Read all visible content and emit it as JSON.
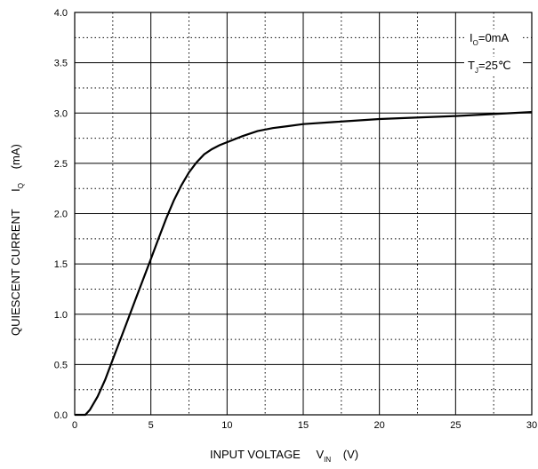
{
  "chart_data": {
    "type": "line",
    "title": "",
    "xlabel": {
      "main": "INPUT VOLTAGE",
      "symbol": "V",
      "symbol_sub": "IN",
      "unit": "(V)"
    },
    "ylabel": {
      "main": "QUIESCENT CURRENT",
      "symbol": "I",
      "symbol_sub": "Q",
      "unit": "(mA)"
    },
    "xlim": [
      0,
      30
    ],
    "ylim": [
      0.0,
      4.0
    ],
    "x_ticks": [
      "0",
      "5",
      "10",
      "15",
      "20",
      "25",
      "30"
    ],
    "y_ticks": [
      "0.0",
      "0.5",
      "1.0",
      "1.5",
      "2.0",
      "2.5",
      "3.0",
      "3.5",
      "4.0"
    ],
    "grid": {
      "major": "solid",
      "minor": "dotted"
    },
    "annotations": [
      {
        "main": "I",
        "sub": "O",
        "rest": "=0mA"
      },
      {
        "main": "T",
        "sub": "J",
        "rest": "=25℃"
      }
    ],
    "series": [
      {
        "x": [
          0,
          0.7,
          1.0,
          1.5,
          2.0,
          2.5,
          3.0,
          3.5,
          4.0,
          4.5,
          5.0,
          5.5,
          6.0,
          6.5,
          7.0,
          7.5,
          8.0,
          8.5,
          9.0,
          9.5,
          10.0,
          11.0,
          12.0,
          13.0,
          14.0,
          15.0,
          17.0,
          20.0,
          25.0,
          30.0
        ],
        "y": [
          0.0,
          0.0,
          0.05,
          0.18,
          0.35,
          0.55,
          0.75,
          0.95,
          1.15,
          1.35,
          1.55,
          1.75,
          1.95,
          2.13,
          2.28,
          2.41,
          2.51,
          2.59,
          2.64,
          2.68,
          2.71,
          2.77,
          2.82,
          2.85,
          2.87,
          2.89,
          2.91,
          2.94,
          2.97,
          3.01
        ]
      }
    ]
  }
}
